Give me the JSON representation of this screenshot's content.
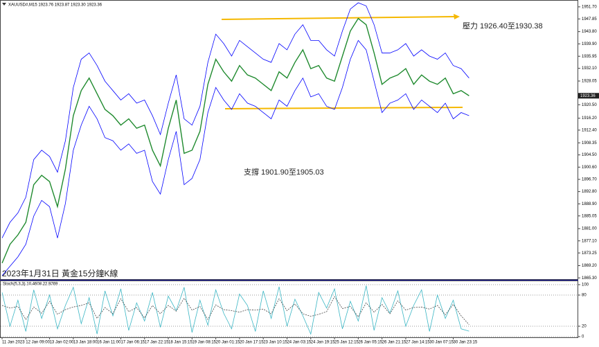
{
  "chart_data": [
    {
      "type": "line",
      "title": "XAUUSD#,M15  1923.76 1923.87 1923.30 1923.36",
      "resistance_note": "壓力 1926.40至1930.38",
      "support_note": "支撐 1901.90至1905.03",
      "caption": "2023年1月31日 黃金15分鐘K線",
      "last_price": 1923.36,
      "grid": false,
      "categories": [
        "11 Jan 2023",
        null,
        null,
        "12 Jan 09:00",
        null,
        null,
        "13 Jan 02:00",
        null,
        null,
        "13 Jan 18:00",
        null,
        null,
        "16 Jan 11:00",
        null,
        null,
        "17 Jan 06:15",
        null,
        null,
        "17 Jan 22:15",
        null,
        null,
        "18 Jan 15:15",
        null,
        null,
        "19 Jan 08:15",
        null,
        null,
        "20 Jan 01:15",
        null,
        null,
        "20 Jan 17:15",
        null,
        null,
        "23 Jan 10:15",
        null,
        null,
        "24 Jan 03:15",
        null,
        null,
        "24 Jan 19:15",
        null,
        null,
        "25 Jan 12:15",
        null,
        null,
        "26 Jan 05:15",
        null,
        null,
        "26 Jan 21:15",
        null,
        null,
        "27 Jan 14:15",
        null,
        null,
        "30 Jan 07:15",
        null,
        null,
        "30 Jan 23:15",
        null,
        null
      ],
      "series": [
        {
          "color": "#1f8a2e",
          "values": [
            1870,
            1876,
            1879,
            1883,
            1895,
            1898,
            1896,
            1888,
            1900,
            1917,
            1925,
            1929,
            1924,
            1919,
            1917,
            1914,
            1916,
            1913,
            1914,
            1906,
            1901,
            1913,
            1922,
            1905,
            1906,
            1912,
            1927,
            1935,
            1931,
            1928,
            1933,
            1930,
            1929,
            1927,
            1925,
            1931,
            1929,
            1934,
            1938,
            1932,
            1933,
            1929,
            1928,
            1936,
            1944,
            1948,
            1946,
            1937,
            1927,
            1929,
            1930,
            1932,
            1927,
            1930,
            1928,
            1927,
            1929,
            1924,
            1925,
            1923.36
          ]
        },
        {
          "color": "#0000ff",
          "values": [
            1878,
            1883,
            1886,
            1891,
            1903,
            1906,
            1904,
            1899,
            1909,
            1926,
            1935,
            1937,
            1933,
            1928,
            1925,
            1922,
            1924,
            1921,
            1922,
            1917,
            1911,
            1921,
            1930,
            1916,
            1914,
            1920,
            1934,
            1943,
            1940,
            1936,
            1941,
            1939,
            1937,
            1935,
            1934,
            1940,
            1938,
            1943,
            1946,
            1941,
            1941,
            1938,
            1936,
            1944,
            1951,
            1953,
            1952,
            1946,
            1937,
            1937,
            1938,
            1940,
            1936,
            1938,
            1936,
            1935,
            1937,
            1933,
            1932,
            1929
          ]
        },
        {
          "color": "#0000ff",
          "values": [
            1866,
            1869,
            1872,
            1876,
            1885,
            1890,
            1888,
            1878,
            1889,
            1906,
            1914,
            1920,
            1916,
            1910,
            1909,
            1906,
            1908,
            1905,
            1906,
            1896,
            1892,
            1903,
            1912,
            1895,
            1897,
            1903,
            1918,
            1926,
            1922,
            1919,
            1924,
            1921,
            1920,
            1918,
            1916,
            1922,
            1920,
            1925,
            1929,
            1923,
            1924,
            1920,
            1919,
            1926,
            1935,
            1941,
            1938,
            1928,
            1918,
            1921,
            1922,
            1924,
            1919,
            1922,
            1920,
            1918,
            1921,
            1916,
            1918,
            1917
          ]
        }
      ],
      "ylim": [
        1864.9,
        1953.0
      ],
      "yticks": [
        {
          "value": 1951.7,
          "label": "1951.70"
        },
        {
          "value": 1947.85,
          "label": "1947.85"
        },
        {
          "value": 1943.8,
          "label": "1943.80"
        },
        {
          "value": 1939.9,
          "label": "1939.90"
        },
        {
          "value": 1935.95,
          "label": "1935.95"
        },
        {
          "value": 1932.1,
          "label": "1932.10"
        },
        {
          "value": 1928.05,
          "label": "1928.05"
        },
        {
          "value": 1920.5,
          "label": "1920.50"
        },
        {
          "value": 1916.2,
          "label": "1916.20"
        },
        {
          "value": 1912.4,
          "label": "1912.40"
        },
        {
          "value": 1908.35,
          "label": "1908.35"
        },
        {
          "value": 1904.5,
          "label": "1904.50"
        },
        {
          "value": 1900.6,
          "label": "1900.60"
        },
        {
          "value": 1896.7,
          "label": "1896.70"
        },
        {
          "value": 1892.8,
          "label": "1892.80"
        },
        {
          "value": 1888.9,
          "label": "1888.90"
        },
        {
          "value": 1885.05,
          "label": "1885.05"
        },
        {
          "value": 1881.0,
          "label": "1881.00"
        },
        {
          "value": 1877.1,
          "label": "1877.10"
        },
        {
          "value": 1873.25,
          "label": "1873.25"
        },
        {
          "value": 1869.2,
          "label": "1869.20"
        },
        {
          "value": 1865.3,
          "label": "1865.30"
        }
      ]
    },
    {
      "type": "line",
      "title": "Stoch(5,3,3) 10.4608 22.9769",
      "grid": true,
      "series": [
        {
          "color": "#3bb6c4",
          "values": [
            85,
            20,
            70,
            10,
            90,
            35,
            80,
            15,
            60,
            95,
            25,
            75,
            5,
            88,
            40,
            92,
            12,
            65,
            30,
            85,
            18,
            78,
            50,
            95,
            8,
            70,
            22,
            90,
            45,
            15,
            82,
            60,
            10,
            88,
            35,
            96,
            20,
            72,
            40,
            5,
            85,
            55,
            92,
            15,
            68,
            30,
            98,
            12,
            75,
            45,
            88,
            20,
            60,
            90,
            10,
            80,
            35,
            70,
            15,
            10.4608
          ]
        },
        {
          "color": "#444444",
          "dashed": true,
          "values": [
            60,
            55,
            58,
            33,
            57,
            45,
            68,
            43,
            52,
            57,
            60,
            65,
            35,
            56,
            44,
            73,
            48,
            56,
            36,
            60,
            44,
            60,
            49,
            74,
            51,
            58,
            33,
            61,
            52,
            50,
            47,
            52,
            51,
            53,
            44,
            73,
            50,
            63,
            44,
            39,
            43,
            48,
            77,
            54,
            58,
            38,
            65,
            47,
            62,
            44,
            69,
            51,
            56,
            57,
            53,
            60,
            42,
            62,
            40,
            22.9769
          ]
        }
      ],
      "ylim": [
        0,
        100
      ],
      "yticks": [
        100,
        80,
        20,
        0
      ]
    }
  ]
}
